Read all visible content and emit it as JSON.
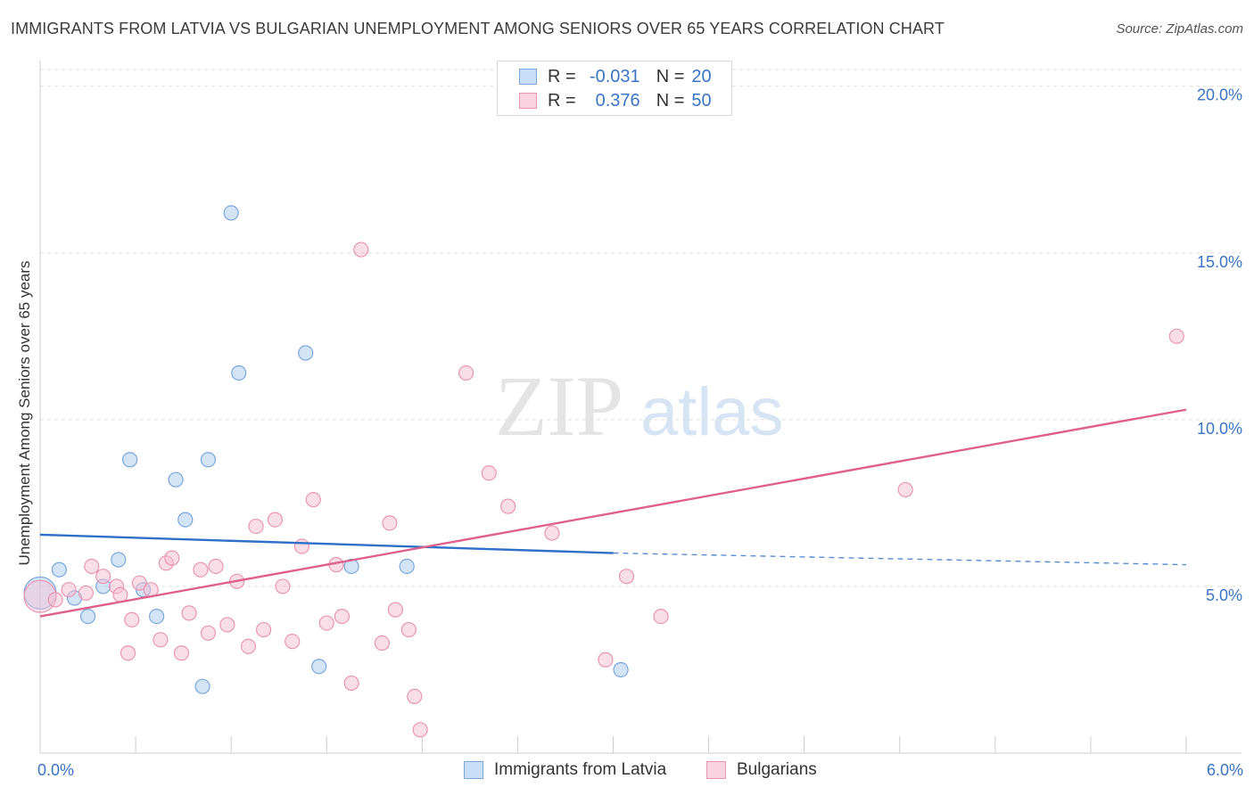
{
  "title": "IMMIGRANTS FROM LATVIA VS BULGARIAN UNEMPLOYMENT AMONG SENIORS OVER 65 YEARS CORRELATION CHART",
  "source": "Source: ZipAtlas.com",
  "colors": {
    "blue_fill": "#a9c9f0",
    "blue_stroke": "#7aa6dd",
    "blue_line": "#2e6fc8",
    "pink_fill": "#f6bdd0",
    "pink_stroke": "#e896b3",
    "pink_line": "#e0608c",
    "axis_label": "#3a74c4",
    "grid": "#dddddd"
  },
  "stats": [
    {
      "r_label": "R =",
      "r": "-0.031",
      "n_label": "N =",
      "n": "20",
      "series": "blue"
    },
    {
      "r_label": "R =",
      "r": "0.376",
      "n_label": "N =",
      "n": "50",
      "series": "pink"
    }
  ],
  "watermark": {
    "zip": "ZIP",
    "atlas": "atlas"
  },
  "chart_data": {
    "type": "scatter",
    "title": "IMMIGRANTS FROM LATVIA VS BULGARIAN UNEMPLOYMENT AMONG SENIORS OVER 65 YEARS CORRELATION CHART",
    "xlabel": "",
    "ylabel": "Unemployment Among Seniors over 65 years",
    "xlim": [
      0,
      6
    ],
    "ylim": [
      0,
      20.5
    ],
    "x_tick_labels": [
      {
        "value": 0,
        "label": "0.0%"
      },
      {
        "value": 6,
        "label": "6.0%"
      }
    ],
    "y_tick_labels": [
      {
        "value": 5,
        "label": "5.0%"
      },
      {
        "value": 10,
        "label": "10.0%"
      },
      {
        "value": 15,
        "label": "15.0%"
      },
      {
        "value": 20,
        "label": "20.0%"
      }
    ],
    "grid": true,
    "legend_position": "bottom",
    "series": [
      {
        "name": "Immigrants from Latvia",
        "color_key": "blue",
        "trend": {
          "x0": 0,
          "y0": 6.55,
          "x1": 3.0,
          "y1": 6.0,
          "dash_to_x": 6.0,
          "dash_y": 5.65
        },
        "points": [
          {
            "x": 0.0,
            "y": 4.8,
            "big": true
          },
          {
            "x": 0.1,
            "y": 5.5
          },
          {
            "x": 0.18,
            "y": 4.65
          },
          {
            "x": 0.25,
            "y": 4.1
          },
          {
            "x": 0.33,
            "y": 5.0
          },
          {
            "x": 0.41,
            "y": 5.8
          },
          {
            "x": 0.47,
            "y": 8.8
          },
          {
            "x": 0.54,
            "y": 4.9
          },
          {
            "x": 0.61,
            "y": 4.1
          },
          {
            "x": 0.71,
            "y": 8.2
          },
          {
            "x": 0.76,
            "y": 7.0
          },
          {
            "x": 0.85,
            "y": 2.0
          },
          {
            "x": 0.88,
            "y": 8.8
          },
          {
            "x": 1.0,
            "y": 16.2
          },
          {
            "x": 1.04,
            "y": 11.4
          },
          {
            "x": 1.39,
            "y": 12.0
          },
          {
            "x": 1.46,
            "y": 2.6
          },
          {
            "x": 1.63,
            "y": 5.6
          },
          {
            "x": 1.92,
            "y": 5.6
          },
          {
            "x": 3.04,
            "y": 2.5
          }
        ]
      },
      {
        "name": "Bulgarians",
        "color_key": "pink",
        "trend": {
          "x0": 0,
          "y0": 4.1,
          "x1": 6.0,
          "y1": 10.3
        },
        "points": [
          {
            "x": 0.0,
            "y": 4.7,
            "big": true
          },
          {
            "x": 0.08,
            "y": 4.6
          },
          {
            "x": 0.15,
            "y": 4.9
          },
          {
            "x": 0.24,
            "y": 4.8
          },
          {
            "x": 0.27,
            "y": 5.6
          },
          {
            "x": 0.33,
            "y": 5.3
          },
          {
            "x": 0.4,
            "y": 5.0
          },
          {
            "x": 0.42,
            "y": 4.75
          },
          {
            "x": 0.46,
            "y": 3.0
          },
          {
            "x": 0.48,
            "y": 4.0
          },
          {
            "x": 0.52,
            "y": 5.1
          },
          {
            "x": 0.58,
            "y": 4.9
          },
          {
            "x": 0.63,
            "y": 3.4
          },
          {
            "x": 0.66,
            "y": 5.7
          },
          {
            "x": 0.69,
            "y": 5.85
          },
          {
            "x": 0.74,
            "y": 3.0
          },
          {
            "x": 0.78,
            "y": 4.2
          },
          {
            "x": 0.84,
            "y": 5.5
          },
          {
            "x": 0.88,
            "y": 3.6
          },
          {
            "x": 0.92,
            "y": 5.6
          },
          {
            "x": 0.98,
            "y": 3.85
          },
          {
            "x": 1.03,
            "y": 5.15
          },
          {
            "x": 1.09,
            "y": 3.2
          },
          {
            "x": 1.13,
            "y": 6.8
          },
          {
            "x": 1.17,
            "y": 3.7
          },
          {
            "x": 1.23,
            "y": 7.0
          },
          {
            "x": 1.27,
            "y": 5.0
          },
          {
            "x": 1.32,
            "y": 3.35
          },
          {
            "x": 1.37,
            "y": 6.2
          },
          {
            "x": 1.43,
            "y": 7.6
          },
          {
            "x": 1.5,
            "y": 3.9
          },
          {
            "x": 1.55,
            "y": 5.65
          },
          {
            "x": 1.58,
            "y": 4.1
          },
          {
            "x": 1.63,
            "y": 2.1
          },
          {
            "x": 1.68,
            "y": 15.1
          },
          {
            "x": 1.79,
            "y": 3.3
          },
          {
            "x": 1.83,
            "y": 6.9
          },
          {
            "x": 1.86,
            "y": 4.3
          },
          {
            "x": 1.93,
            "y": 3.7
          },
          {
            "x": 1.96,
            "y": 1.7
          },
          {
            "x": 1.99,
            "y": 0.7
          },
          {
            "x": 2.23,
            "y": 11.4
          },
          {
            "x": 2.35,
            "y": 8.4
          },
          {
            "x": 2.45,
            "y": 7.4
          },
          {
            "x": 2.68,
            "y": 6.6
          },
          {
            "x": 2.96,
            "y": 2.8
          },
          {
            "x": 3.07,
            "y": 5.3
          },
          {
            "x": 3.25,
            "y": 4.1
          },
          {
            "x": 4.53,
            "y": 7.9
          },
          {
            "x": 5.95,
            "y": 12.5
          }
        ]
      }
    ]
  }
}
